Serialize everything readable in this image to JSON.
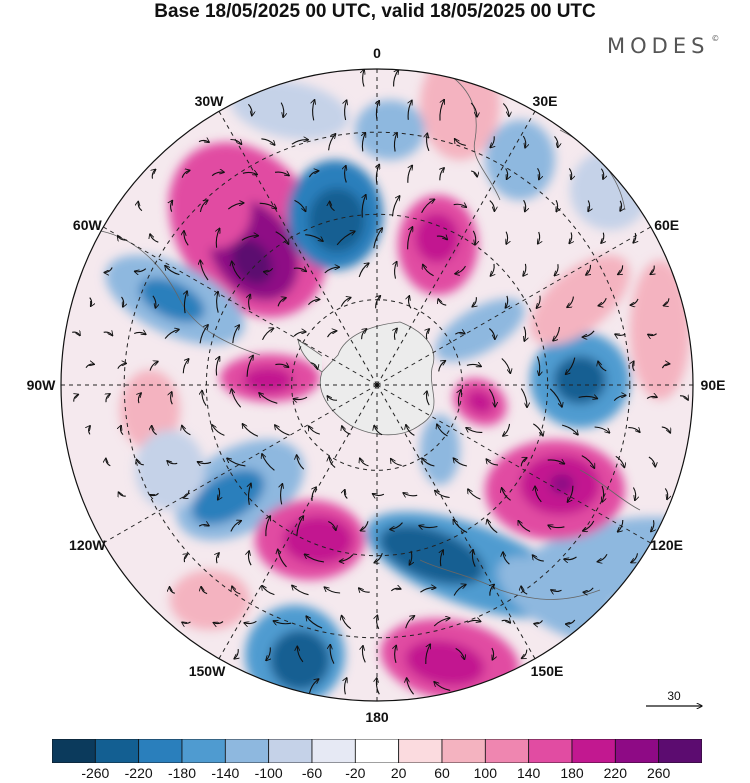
{
  "title": "Base 18/05/2025 00 UTC, valid 18/05/2025 00 UTC",
  "brand": "MODES",
  "brand_mark": "©",
  "map": {
    "projection": "polar-stereographic-south",
    "graticule": "dashed",
    "longitude_labels": [
      {
        "name": "lon-label-0",
        "text": "0",
        "lon": 0
      },
      {
        "name": "lon-label-30e",
        "text": "30E",
        "lon": 30
      },
      {
        "name": "lon-label-60e",
        "text": "60E",
        "lon": 60
      },
      {
        "name": "lon-label-90e",
        "text": "90E",
        "lon": 90
      },
      {
        "name": "lon-label-120e",
        "text": "120E",
        "lon": 120
      },
      {
        "name": "lon-label-150e",
        "text": "150E",
        "lon": 150
      },
      {
        "name": "lon-label-180",
        "text": "180",
        "lon": 180
      },
      {
        "name": "lon-label-150w",
        "text": "150W",
        "lon": -150
      },
      {
        "name": "lon-label-120w",
        "text": "120W",
        "lon": -120
      },
      {
        "name": "lon-label-90w",
        "text": "90W",
        "lon": -90
      },
      {
        "name": "lon-label-60w",
        "text": "60W",
        "lon": -60
      },
      {
        "name": "lon-label-30w",
        "text": "30W",
        "lon": -30
      }
    ],
    "reference_vector": {
      "value": "30"
    }
  },
  "colorbar": {
    "colors": [
      "#0b3a5c",
      "#135f92",
      "#2a7fbc",
      "#4f9bd0",
      "#8eb8df",
      "#c5d2e8",
      "#e6e9f4",
      "#ffffff",
      "#fbdbdf",
      "#f4b3c0",
      "#ef86b0",
      "#e14ca2",
      "#c21890",
      "#8e0a85",
      "#5c0c70"
    ],
    "ticks": [
      "-260",
      "-220",
      "-180",
      "-140",
      "-100",
      "-60",
      "-20",
      "20",
      "60",
      "100",
      "140",
      "180",
      "220",
      "260"
    ]
  }
}
